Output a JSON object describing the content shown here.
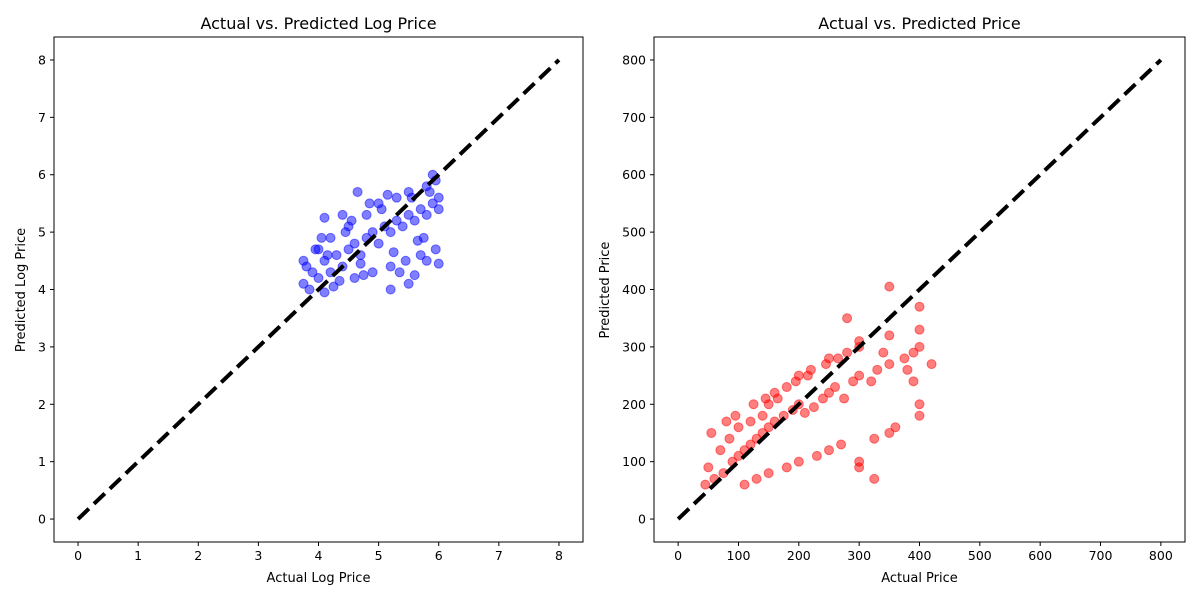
{
  "chart_data": [
    {
      "type": "scatter",
      "title": "Actual vs. Predicted Log Price",
      "xlabel": "Actual Log Price",
      "ylabel": "Predicted Log Price",
      "xlim": [
        -0.4,
        8.4
      ],
      "ylim": [
        -0.4,
        8.4
      ],
      "xticks": [
        "0",
        "1",
        "2",
        "3",
        "4",
        "5",
        "6",
        "7",
        "8"
      ],
      "yticks": [
        "0",
        "1",
        "2",
        "3",
        "4",
        "5",
        "6",
        "7",
        "8"
      ],
      "point_color": "#0000ff",
      "point_alpha": 0.5,
      "reference_line": {
        "x": [
          0,
          8
        ],
        "y": [
          0,
          8
        ],
        "style": "dashed",
        "color": "#000000"
      },
      "x": [
        3.75,
        3.9,
        4.0,
        4.1,
        4.2,
        4.3,
        4.4,
        4.5,
        4.6,
        4.7,
        4.8,
        4.9,
        5.0,
        5.1,
        5.2,
        5.3,
        5.4,
        5.5,
        5.6,
        5.7,
        5.8,
        5.9,
        6.0,
        3.75,
        4.0,
        4.2,
        4.5,
        4.8,
        5.0,
        5.3,
        5.5,
        5.8,
        6.0,
        4.1,
        4.6,
        5.2,
        5.7,
        3.85,
        4.35,
        4.9,
        5.45,
        5.95,
        4.05,
        4.55,
        5.05,
        5.55,
        5.85,
        4.25,
        4.75,
        5.25,
        5.65,
        3.8,
        4.15,
        4.45,
        4.85,
        5.15,
        5.35,
        5.75,
        5.95,
        4.65,
        5.9,
        5.5,
        5.2,
        4.4,
        4.1,
        3.95,
        4.7,
        5.6,
        5.8,
        6.0
      ],
      "y": [
        4.1,
        4.3,
        4.2,
        4.5,
        4.3,
        4.6,
        4.4,
        4.7,
        4.8,
        4.6,
        4.9,
        5.0,
        4.8,
        5.1,
        5.0,
        5.2,
        5.1,
        5.3,
        5.2,
        5.4,
        5.3,
        5.5,
        5.4,
        4.5,
        4.7,
        4.9,
        5.1,
        5.3,
        5.5,
        5.6,
        5.7,
        5.8,
        5.6,
        3.95,
        4.2,
        4.4,
        4.6,
        4.0,
        4.15,
        4.3,
        4.5,
        4.7,
        4.9,
        5.2,
        5.4,
        5.6,
        5.7,
        4.05,
        4.25,
        4.65,
        4.85,
        4.4,
        4.6,
        5.0,
        5.5,
        5.65,
        4.3,
        4.9,
        5.9,
        5.7,
        6.0,
        4.1,
        4.0,
        5.3,
        5.25,
        4.7,
        4.45,
        4.25,
        4.5,
        4.45
      ]
    },
    {
      "type": "scatter",
      "title": "Actual vs. Predicted Price",
      "xlabel": "Actual Price",
      "ylabel": "Predicted Price",
      "xlim": [
        -40,
        840
      ],
      "ylim": [
        -40,
        840
      ],
      "xticks": [
        "0",
        "100",
        "200",
        "300",
        "400",
        "500",
        "600",
        "700",
        "800"
      ],
      "yticks": [
        "0",
        "100",
        "200",
        "300",
        "400",
        "500",
        "600",
        "700",
        "800"
      ],
      "point_color": "#ff0000",
      "point_alpha": 0.5,
      "reference_line": {
        "x": [
          0,
          800
        ],
        "y": [
          0,
          800
        ],
        "style": "dashed",
        "color": "#000000"
      },
      "x": [
        45,
        60,
        75,
        90,
        100,
        110,
        120,
        130,
        140,
        150,
        160,
        175,
        190,
        200,
        210,
        225,
        240,
        250,
        260,
        275,
        290,
        300,
        320,
        330,
        350,
        375,
        390,
        400,
        420,
        50,
        70,
        85,
        100,
        120,
        140,
        150,
        165,
        180,
        200,
        220,
        250,
        280,
        300,
        350,
        400,
        110,
        130,
        150,
        180,
        200,
        230,
        250,
        270,
        300,
        325,
        350,
        360,
        400,
        400,
        55,
        80,
        95,
        125,
        145,
        160,
        195,
        215,
        245,
        265,
        300,
        340,
        380,
        390,
        400,
        350,
        280,
        325,
        300
      ],
      "y": [
        60,
        70,
        80,
        100,
        110,
        120,
        130,
        140,
        150,
        160,
        170,
        180,
        190,
        200,
        185,
        195,
        210,
        220,
        230,
        210,
        240,
        250,
        240,
        260,
        270,
        280,
        290,
        300,
        270,
        90,
        120,
        140,
        160,
        170,
        180,
        200,
        210,
        230,
        250,
        260,
        280,
        290,
        310,
        320,
        330,
        60,
        70,
        80,
        90,
        100,
        110,
        120,
        130,
        100,
        140,
        150,
        160,
        180,
        200,
        150,
        170,
        180,
        200,
        210,
        220,
        240,
        250,
        270,
        280,
        300,
        290,
        260,
        240,
        370,
        405,
        350,
        70,
        90
      ]
    }
  ]
}
